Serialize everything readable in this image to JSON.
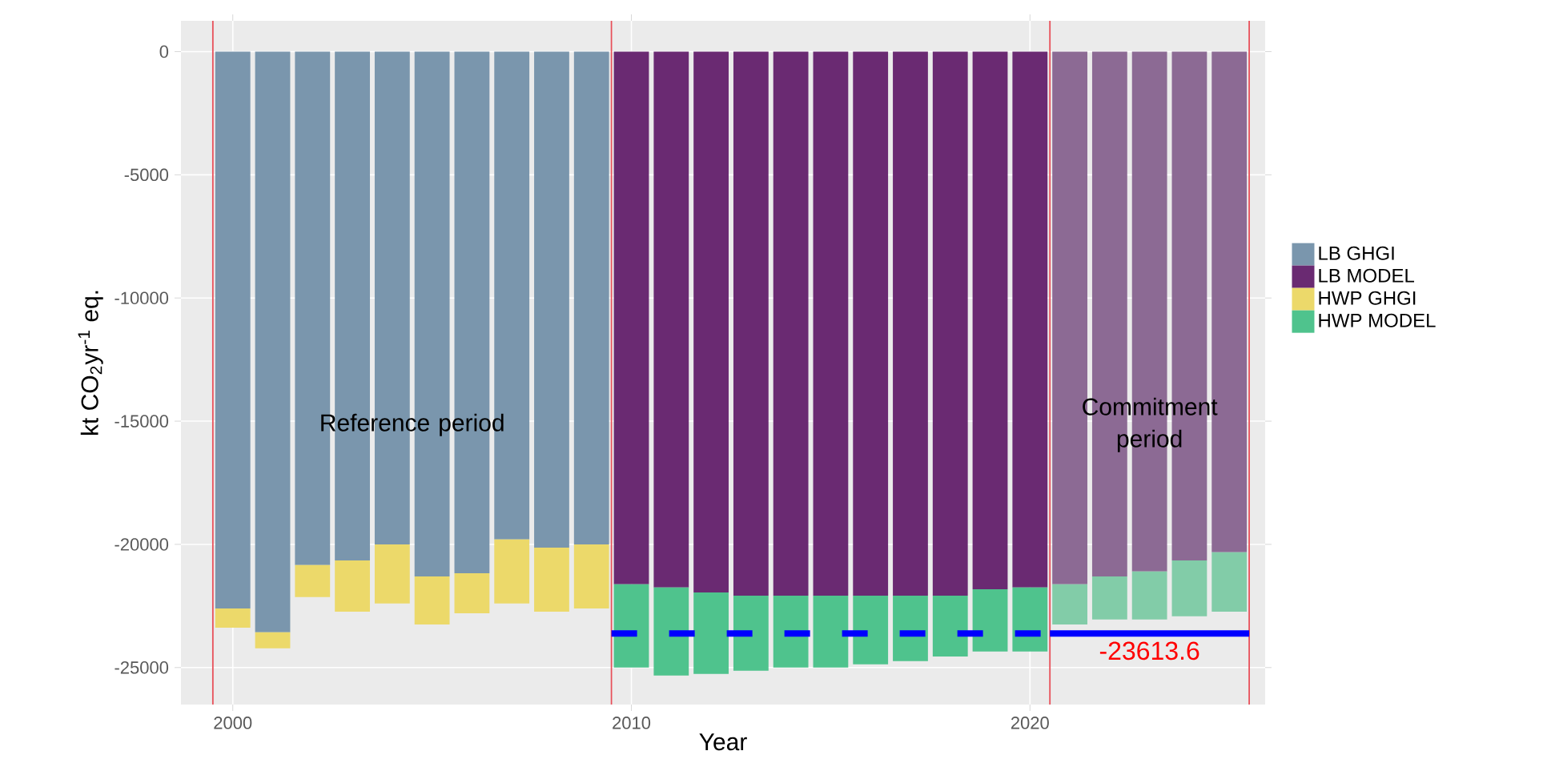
{
  "chart_data": {
    "type": "bar",
    "stacked": true,
    "xlabel": "Year",
    "ylabel": "kt  CO$_{2}$yr$^{-1}$ eq.",
    "x": [
      2000,
      2001,
      2002,
      2003,
      2004,
      2005,
      2006,
      2007,
      2008,
      2009,
      2010,
      2011,
      2012,
      2013,
      2014,
      2015,
      2016,
      2017,
      2018,
      2019,
      2020,
      2021,
      2022,
      2023,
      2024,
      2025
    ],
    "series": [
      {
        "name": "LB GHGI",
        "color": "#7a96ad",
        "values": [
          -22600,
          -23570,
          -20840,
          -20650,
          -20000,
          -21300,
          -21170,
          -19800,
          -20130,
          -20000,
          null,
          null,
          null,
          null,
          null,
          null,
          null,
          null,
          null,
          null,
          null,
          null,
          null,
          null,
          null,
          null
        ]
      },
      {
        "name": "LB MODEL",
        "colors": [
          "#6a2a72",
          "#6a2a72",
          "#6a2a72",
          "#6a2a72",
          "#6a2a72",
          "#6a2a72",
          "#6a2a72",
          "#6a2a72",
          "#6a2a72",
          "#6a2a72",
          "#6a2a72",
          "#6a2a72",
          "#6a2a72",
          "#6a2a72",
          "#6a2a72",
          "#6a2a72",
          "#6a2a72",
          "#6a2a72",
          "#6a2a72",
          "#6a2a72",
          "#6a2a72",
          "#8c6a94",
          "#8c6a94",
          "#8c6a94",
          "#8c6a94",
          "#8c6a94"
        ],
        "values": [
          null,
          null,
          null,
          null,
          null,
          null,
          null,
          null,
          null,
          null,
          -21620,
          -21750,
          -21950,
          -22080,
          -22080,
          -22080,
          -22080,
          -22080,
          -22080,
          -21820,
          -21750,
          -21620,
          -21300,
          -21100,
          -20650,
          -20320
        ]
      },
      {
        "name": "HWP GHGI",
        "color": "#ecd96a",
        "values": [
          -780,
          -650,
          -1300,
          -2080,
          -2400,
          -1950,
          -1630,
          -2600,
          -2600,
          -2600,
          null,
          null,
          null,
          null,
          null,
          null,
          null,
          null,
          null,
          null,
          null,
          null,
          null,
          null,
          null,
          null
        ]
      },
      {
        "name": "HWP MODEL",
        "colors": [
          "#4fc38d",
          "#4fc38d",
          "#4fc38d",
          "#4fc38d",
          "#4fc38d",
          "#4fc38d",
          "#4fc38d",
          "#4fc38d",
          "#4fc38d",
          "#4fc38d",
          "#4fc38d",
          "#4fc38d",
          "#4fc38d",
          "#4fc38d",
          "#4fc38d",
          "#4fc38d",
          "#4fc38d",
          "#4fc38d",
          "#4fc38d",
          "#4fc38d",
          "#4fc38d",
          "#82cca8",
          "#82cca8",
          "#82cca8",
          "#82cca8",
          "#82cca8"
        ],
        "values": [
          null,
          null,
          null,
          null,
          null,
          null,
          null,
          null,
          null,
          null,
          -3380,
          -3570,
          -3310,
          -3050,
          -2920,
          -2920,
          -2790,
          -2660,
          -2470,
          -2530,
          -2600,
          -1630,
          -1750,
          -1950,
          -2270,
          -2410
        ]
      },
      {
        "type": "line",
        "color": "#0000ff",
        "line_style": "dashed",
        "x": [
          2009.5,
          2020.5
        ],
        "values": [
          -23613.6,
          -23613.6
        ]
      },
      {
        "type": "line",
        "color": "#0000ff",
        "line_style": "solid",
        "x": [
          2020.5,
          2025.5
        ],
        "values": [
          -23613.6,
          -23613.6
        ]
      }
    ],
    "xlim": [
      1998.7,
      2025.9
    ],
    "xticks": [
      2000,
      2010,
      2020
    ],
    "ylim": [
      -26500,
      1250
    ],
    "yticks": [
      0,
      -5000,
      -10000,
      -15000,
      -20000,
      -25000
    ],
    "ref_lines": [
      {
        "axis": "x",
        "value": 1999.5,
        "color": "#e8505a"
      },
      {
        "axis": "x",
        "value": 2009.5,
        "color": "#e8505a"
      },
      {
        "axis": "x",
        "value": 2020.5,
        "color": "#e8505a"
      },
      {
        "axis": "x",
        "value": 2025.5,
        "color": "#e8505a"
      }
    ],
    "annotations": [
      "Reference period",
      "Commitment period",
      {
        "text": "-23613.6",
        "x": 2023,
        "y": -23613.6
      }
    ],
    "grid": true,
    "legend": "right"
  }
}
